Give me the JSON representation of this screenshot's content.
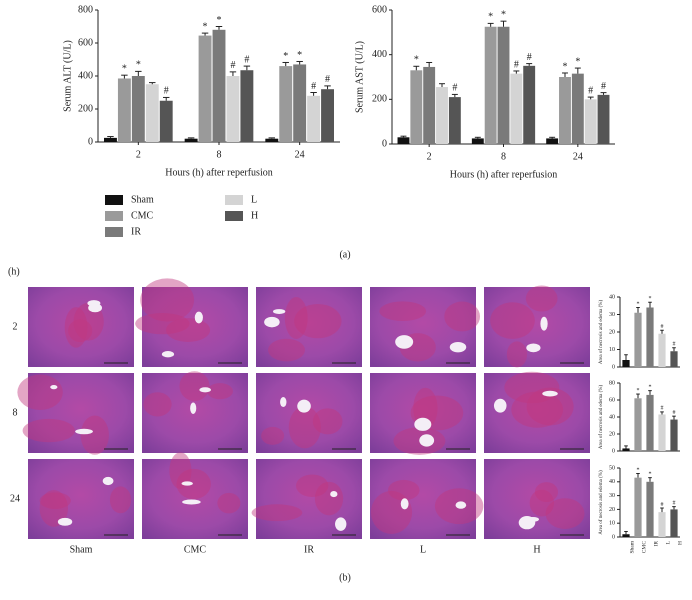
{
  "figure": {
    "panel_labels": [
      "(a)",
      "(h)",
      "(b)"
    ],
    "row_labels": [
      "2",
      "8",
      "24"
    ],
    "column_labels": [
      "Sham",
      "CMC",
      "IR",
      "L",
      "H"
    ]
  },
  "chart_data": [
    {
      "type": "bar",
      "ylabel": "Serum ALT (U/L)",
      "xlabel": "Hours (h) after reperfusion",
      "categories": [
        "2",
        "8",
        "24"
      ],
      "ylim": [
        0,
        800
      ],
      "yticks": [
        0,
        200,
        400,
        600,
        800
      ],
      "series": [
        {
          "name": "Sham",
          "color": "#111111",
          "values": [
            25,
            20,
            20
          ],
          "errors": [
            8,
            5,
            5
          ],
          "markers": [
            null,
            null,
            null
          ]
        },
        {
          "name": "CMC",
          "color": "#9a9a9a",
          "values": [
            385,
            645,
            460
          ],
          "errors": [
            20,
            15,
            22
          ],
          "markers": [
            "*",
            "*",
            "*"
          ]
        },
        {
          "name": "IR",
          "color": "#7a7a7a",
          "values": [
            400,
            680,
            470
          ],
          "errors": [
            28,
            20,
            18
          ],
          "markers": [
            "*",
            "*",
            "*"
          ]
        },
        {
          "name": "L",
          "color": "#d4d4d4",
          "values": [
            350,
            400,
            280
          ],
          "errors": [
            10,
            25,
            20
          ],
          "markers": [
            null,
            "#",
            "#"
          ]
        },
        {
          "name": "H",
          "color": "#555555",
          "values": [
            250,
            435,
            320
          ],
          "errors": [
            20,
            25,
            20
          ],
          "markers": [
            "#",
            "#",
            "#"
          ]
        }
      ]
    },
    {
      "type": "bar",
      "ylabel": "Serum AST (U/L)",
      "xlabel": "Hours (h) after reperfusion",
      "categories": [
        "2",
        "8",
        "24"
      ],
      "ylim": [
        0,
        600
      ],
      "yticks": [
        0,
        200,
        400,
        600
      ],
      "series": [
        {
          "color": "#111111",
          "values": [
            30,
            25,
            25
          ],
          "errors": [
            5,
            5,
            5
          ],
          "markers": [
            null,
            null,
            null
          ]
        },
        {
          "color": "#9a9a9a",
          "values": [
            330,
            525,
            300
          ],
          "errors": [
            18,
            15,
            18
          ],
          "markers": [
            "*",
            "*",
            "*"
          ]
        },
        {
          "color": "#7a7a7a",
          "values": [
            345,
            525,
            315
          ],
          "errors": [
            20,
            25,
            25
          ],
          "markers": [
            null,
            "*",
            "*"
          ]
        },
        {
          "color": "#d4d4d4",
          "values": [
            255,
            315,
            200
          ],
          "errors": [
            15,
            12,
            10
          ],
          "markers": [
            null,
            "#",
            "#"
          ]
        },
        {
          "color": "#555555",
          "values": [
            210,
            350,
            220
          ],
          "errors": [
            12,
            10,
            10
          ],
          "markers": [
            "#",
            "#",
            "#"
          ]
        }
      ]
    },
    {
      "type": "bar",
      "ylabel": "Area of necrosis and edema (%)",
      "categories": [
        null,
        null,
        null,
        null,
        null
      ],
      "ylim": [
        0,
        40
      ],
      "yticks": [
        0,
        10,
        20,
        30,
        40
      ],
      "colors": [
        "#111111",
        "#9a9a9a",
        "#7a7a7a",
        "#d4d4d4",
        "#555555"
      ],
      "values": [
        4,
        31,
        34,
        19,
        9
      ],
      "errors": [
        3,
        3,
        3,
        2,
        2
      ],
      "markers": [
        null,
        "*",
        "*",
        "#",
        "#"
      ]
    },
    {
      "type": "bar",
      "ylabel": "Area of necrosis and edema (%)",
      "categories": [
        null,
        null,
        null,
        null,
        null
      ],
      "ylim": [
        0,
        80
      ],
      "yticks": [
        0,
        20,
        40,
        60,
        80
      ],
      "colors": [
        "#111111",
        "#9a9a9a",
        "#7a7a7a",
        "#d4d4d4",
        "#555555"
      ],
      "values": [
        3,
        62,
        66,
        43,
        37
      ],
      "errors": [
        3,
        5,
        5,
        3,
        4
      ],
      "markers": [
        null,
        "*",
        "*",
        "#",
        "#"
      ]
    },
    {
      "type": "bar",
      "ylabel": "Area of necrosis and edema (%)",
      "categories": [
        "Sham",
        "CMC",
        "IR",
        "L",
        "H"
      ],
      "ylim": [
        0,
        50
      ],
      "yticks": [
        0,
        10,
        20,
        30,
        40,
        50
      ],
      "colors": [
        "#111111",
        "#9a9a9a",
        "#7a7a7a",
        "#d4d4d4",
        "#555555"
      ],
      "values": [
        2,
        43,
        40,
        18,
        20
      ],
      "errors": [
        2,
        3,
        3,
        3,
        2
      ],
      "markers": [
        null,
        "*",
        "*",
        "#",
        "#"
      ]
    }
  ]
}
